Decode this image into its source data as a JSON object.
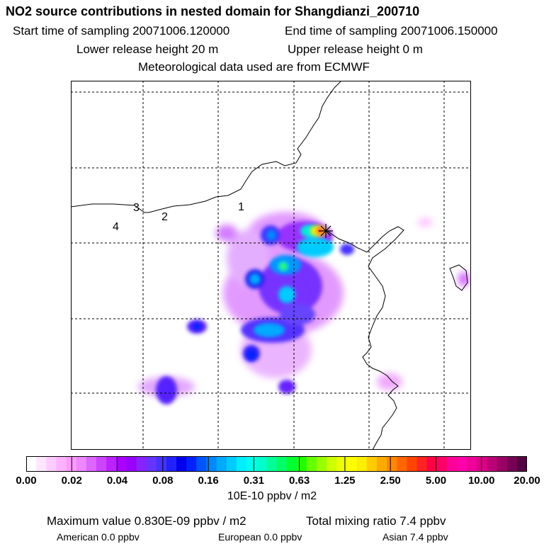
{
  "header": {
    "title": "NO2 source contributions in nested domain for Shangdianzi_200710",
    "start_time": "Start time of sampling 20071006.120000",
    "end_time": "End time of sampling 20071006.150000",
    "lower_height": "Lower release height   20 m",
    "upper_height": "Upper release height    0 m",
    "met_data": "Meteorological data used are from ECMWF"
  },
  "map": {
    "labels": [
      "1",
      "2",
      "3",
      "4"
    ],
    "receptor_marker": "asterisk"
  },
  "colorbar": {
    "tick_labels": [
      "0.00",
      "0.02",
      "0.04",
      "0.08",
      "0.16",
      "0.31",
      "0.63",
      "1.25",
      "2.50",
      "5.00",
      "10.00",
      "20.00"
    ],
    "unit": "10E-10 ppbv / m2",
    "colors": [
      "#ffffff",
      "#ffe6ff",
      "#ffccff",
      "#ffb3ff",
      "#ff99ff",
      "#ee88ff",
      "#dd66ff",
      "#cc44ff",
      "#bb22ff",
      "#aa00ff",
      "#9900ff",
      "#8822ff",
      "#6633ff",
      "#4433ff",
      "#2222ff",
      "#0000ee",
      "#0022ff",
      "#0055ff",
      "#0088ff",
      "#00aaff",
      "#00ccff",
      "#00eeff",
      "#00ffee",
      "#00ffcc",
      "#00ff99",
      "#00ff66",
      "#00ff33",
      "#22ff00",
      "#66ff00",
      "#99ff00",
      "#ccff00",
      "#eeff00",
      "#ffff00",
      "#ffee00",
      "#ffcc00",
      "#ffaa00",
      "#ff8800",
      "#ff6600",
      "#ff4400",
      "#ff2222",
      "#ff0044",
      "#ff0066",
      "#ff0099",
      "#ff00aa",
      "#ee0099",
      "#dd0088",
      "#bb0077",
      "#990066",
      "#770055",
      "#550044"
    ]
  },
  "stats": {
    "max_value": "Maximum value  0.830E-09 ppbv / m2",
    "total_ratio": "Total mixing ratio       7.4 ppbv"
  },
  "regions": {
    "american": "American       0.0 ppbv",
    "european": "European       0.0 ppbv",
    "asian": "Asian       7.4 ppbv"
  }
}
